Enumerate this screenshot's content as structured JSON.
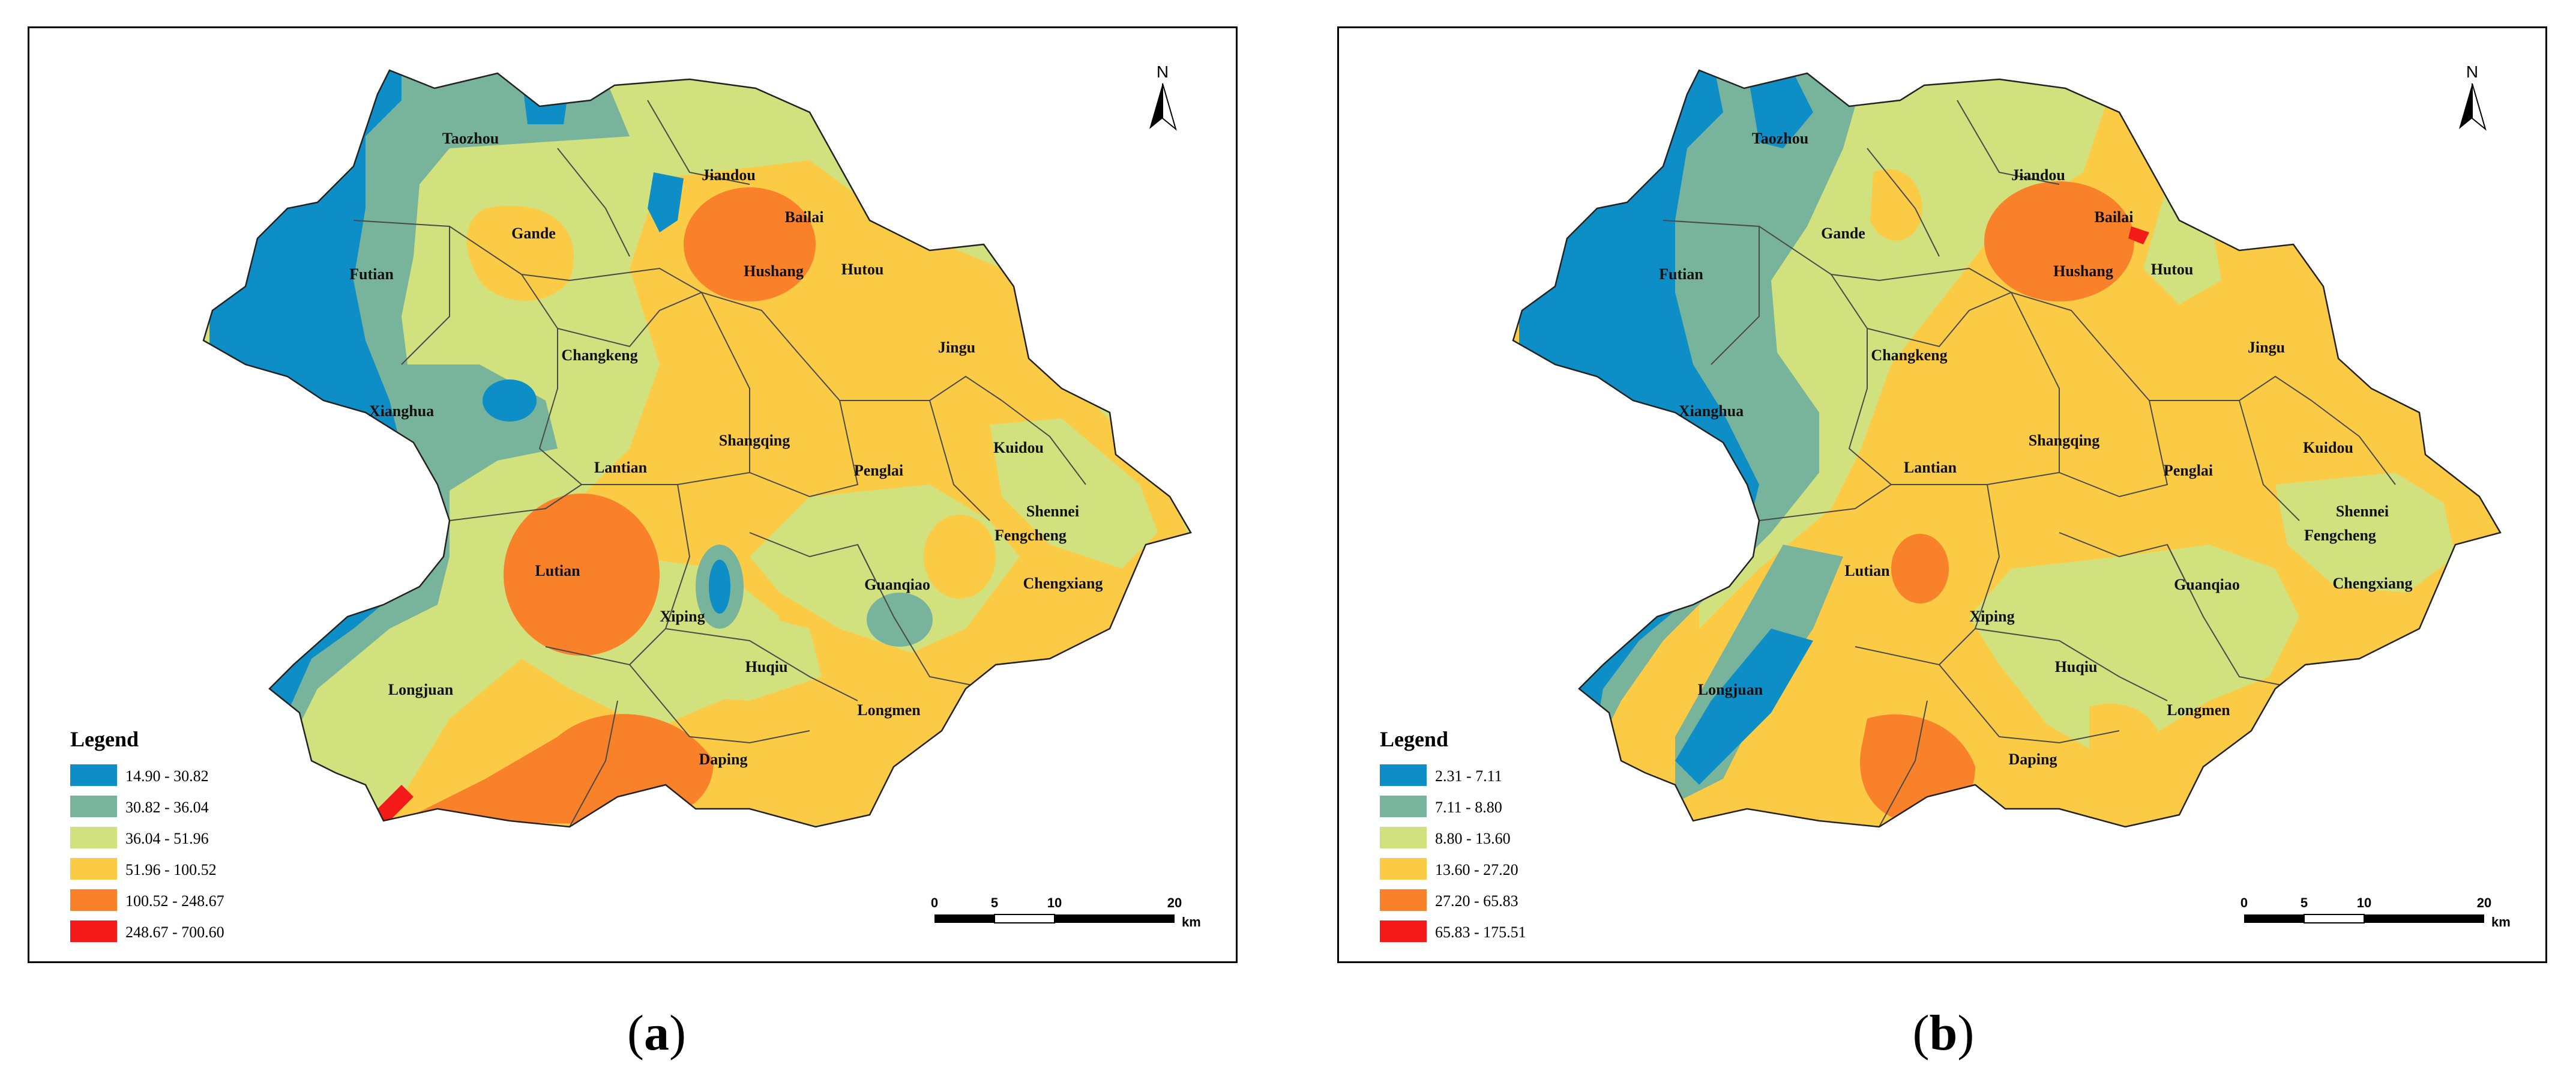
{
  "panels": [
    {
      "id": "a",
      "caption_letter": "a",
      "legend_title": "Legend",
      "legend_items": [
        {
          "range": "14.90 - 30.82",
          "color": "#0e8ec6"
        },
        {
          "range": "30.82 - 36.04",
          "color": "#78b39c"
        },
        {
          "range": "36.04 - 51.96",
          "color": "#d1e17d"
        },
        {
          "range": "51.96 - 100.52",
          "color": "#fccb46"
        },
        {
          "range": "100.52 - 248.67",
          "color": "#f9812a"
        },
        {
          "range": "248.67 - 700.60",
          "color": "#f41a1a"
        }
      ],
      "scalebar": {
        "ticks": [
          "0",
          "5",
          "10",
          "20"
        ],
        "unit": "km"
      },
      "north_label": "N",
      "places": [
        "Taozhou",
        "Jiandou",
        "Bailai",
        "Gande",
        "Hushang",
        "Futian",
        "Hutou",
        "Jingu",
        "Changkeng",
        "Xianghua",
        "Shangqing",
        "Kuidou",
        "Lantian",
        "Penglai",
        "Shennei",
        "Fengcheng",
        "Lutian",
        "Guanqiao",
        "Chengxiang",
        "Xiping",
        "Huqiu",
        "Longjuan",
        "Longmen",
        "Daping"
      ]
    },
    {
      "id": "b",
      "caption_letter": "b",
      "legend_title": "Legend",
      "legend_items": [
        {
          "range": "2.31 - 7.11",
          "color": "#0e8ec6"
        },
        {
          "range": "7.11 - 8.80",
          "color": "#78b39c"
        },
        {
          "range": "8.80 - 13.60",
          "color": "#d1e17d"
        },
        {
          "range": "13.60 - 27.20",
          "color": "#fccb46"
        },
        {
          "range": "27.20 - 65.83",
          "color": "#f9812a"
        },
        {
          "range": "65.83 - 175.51",
          "color": "#f41a1a"
        }
      ],
      "scalebar": {
        "ticks": [
          "0",
          "5",
          "10",
          "20"
        ],
        "unit": "km"
      },
      "north_label": "N",
      "places": [
        "Taozhou",
        "Jiandou",
        "Bailai",
        "Gande",
        "Hushang",
        "Futian",
        "Hutou",
        "Jingu",
        "Changkeng",
        "Xianghua",
        "Shangqing",
        "Kuidou",
        "Lantian",
        "Penglai",
        "Shennei",
        "Fengcheng",
        "Lutian",
        "Guanqiao",
        "Chengxiang",
        "Xiping",
        "Huqiu",
        "Longjuan",
        "Longmen",
        "Daping"
      ]
    }
  ]
}
